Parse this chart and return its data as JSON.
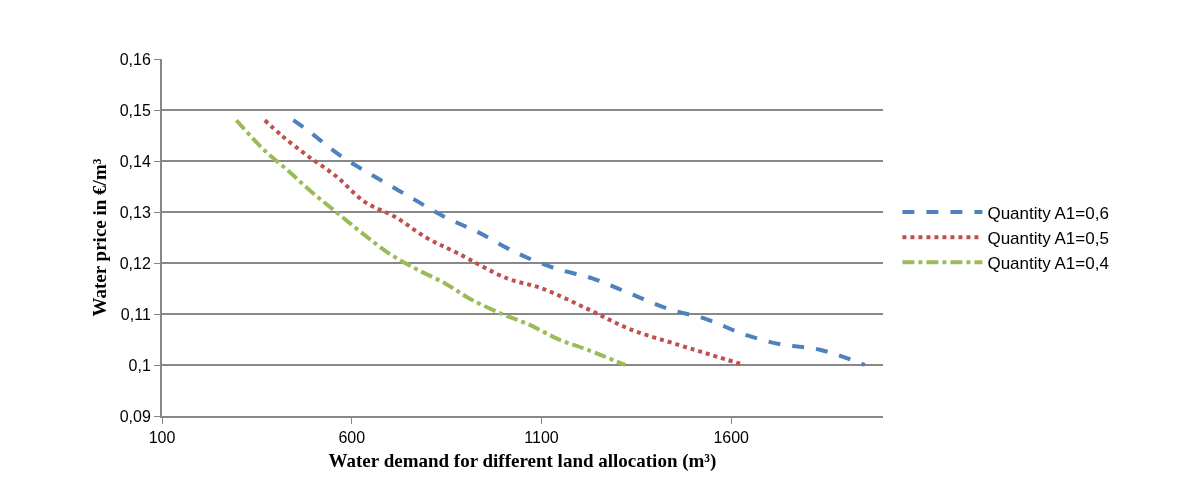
{
  "chart_data": {
    "type": "line",
    "xlabel": "Water demand for different land allocation (m³)",
    "ylabel": "Water price in €/m³",
    "xlim": [
      100,
      2000
    ],
    "xticks": [
      100,
      600,
      1100,
      1600
    ],
    "ylim": [
      0.09,
      0.16
    ],
    "yticks": [
      {
        "value": 0.09,
        "label": "0,09"
      },
      {
        "value": 0.1,
        "label": "0,1"
      },
      {
        "value": 0.11,
        "label": "0,11"
      },
      {
        "value": 0.12,
        "label": "0,12"
      },
      {
        "value": 0.13,
        "label": "0,13"
      },
      {
        "value": 0.14,
        "label": "0,14"
      },
      {
        "value": 0.15,
        "label": "0,15"
      },
      {
        "value": 0.16,
        "label": "0,16"
      }
    ],
    "grid": "y",
    "legend": "right",
    "marker": "none",
    "series": [
      {
        "name": "Quantity A1=0,6",
        "color": "#4f81bd",
        "line_style": "dashed",
        "x": [
          446,
          484,
          571,
          659,
          752,
          846,
          934,
          1034,
          1134,
          1234,
          1334,
          1434,
          1534,
          1634,
          1734,
          1834,
          1952
        ],
        "values": [
          0.148,
          0.146,
          0.141,
          0.137,
          0.133,
          0.129,
          0.126,
          0.122,
          0.119,
          0.117,
          0.114,
          0.111,
          0.109,
          0.106,
          0.104,
          0.103,
          0.1
        ]
      },
      {
        "name": "Quantity A1=0,5",
        "color": "#c0504d",
        "line_style": "dotted",
        "x": [
          371,
          415,
          484,
          559,
          634,
          715,
          796,
          877,
          1009,
          1102,
          1221,
          1334,
          1459,
          1546,
          1634
        ],
        "values": [
          0.148,
          0.145,
          0.141,
          0.137,
          0.132,
          0.129,
          0.125,
          0.122,
          0.117,
          0.115,
          0.111,
          0.107,
          0.104,
          0.102,
          0.1
        ]
      },
      {
        "name": "Quantity A1=0,4",
        "color": "#9bbb59",
        "line_style": "dashdot",
        "x": [
          296,
          371,
          434,
          493,
          559,
          625,
          696,
          765,
          846,
          911,
          996,
          1065,
          1146,
          1221,
          1321
        ],
        "values": [
          0.148,
          0.142,
          0.138,
          0.134,
          0.13,
          0.126,
          0.122,
          0.119,
          0.116,
          0.113,
          0.11,
          0.108,
          0.105,
          0.103,
          0.1
        ]
      }
    ]
  }
}
